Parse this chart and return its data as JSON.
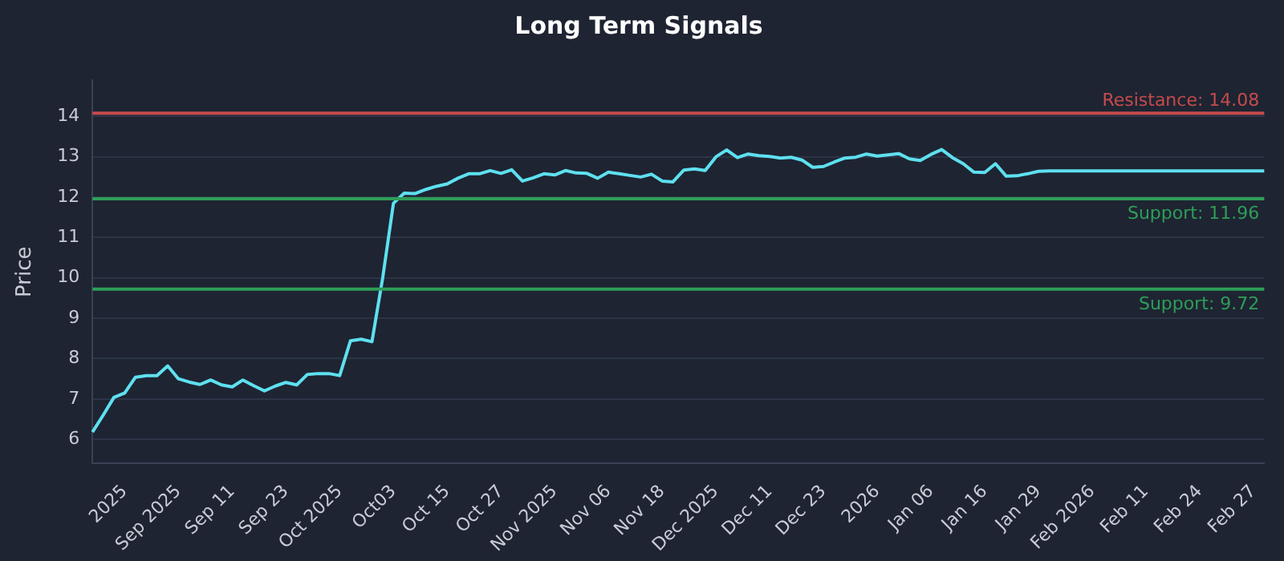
{
  "chart_data": {
    "type": "line",
    "title": "Long Term Signals",
    "ylabel": "Price",
    "categories": [
      null,
      null,
      null,
      "2025",
      null,
      null,
      null,
      null,
      "Sep 2025",
      null,
      null,
      null,
      null,
      "Sep 11",
      null,
      null,
      null,
      null,
      "Sep 23",
      null,
      null,
      null,
      null,
      "Oct 2025",
      null,
      null,
      null,
      null,
      "Oct03",
      null,
      null,
      null,
      null,
      "Oct 15",
      null,
      null,
      null,
      null,
      "Oct 27",
      null,
      null,
      null,
      null,
      "Nov 2025",
      null,
      null,
      null,
      null,
      "Nov 06",
      null,
      null,
      null,
      null,
      "Nov 18",
      null,
      null,
      null,
      null,
      "Dec 2025",
      null,
      null,
      null,
      null,
      "Dec 11",
      null,
      null,
      null,
      null,
      "Dec 23",
      null,
      null,
      null,
      null,
      "2026",
      null,
      null,
      null,
      null,
      "Jan 06",
      null,
      null,
      null,
      null,
      "Jan 16",
      null,
      null,
      null,
      null,
      "Jan 29",
      null,
      null,
      null,
      null,
      "Feb 2026",
      null,
      null,
      null,
      null,
      "Feb 11",
      null,
      null,
      null,
      null,
      "Feb 24",
      null,
      null,
      null,
      null,
      "Feb 27",
      null
    ],
    "series": [
      {
        "color": "#5ee0ef",
        "values": [
          6.18,
          6.6,
          7.04,
          7.15,
          7.54,
          7.58,
          7.58,
          7.82,
          7.5,
          7.42,
          7.36,
          7.47,
          7.35,
          7.3,
          7.47,
          7.33,
          7.2,
          7.32,
          7.41,
          7.35,
          7.61,
          7.63,
          7.63,
          7.58,
          8.44,
          8.48,
          8.42,
          10.0,
          11.85,
          12.1,
          12.09,
          12.19,
          12.27,
          12.33,
          12.47,
          12.58,
          12.58,
          12.66,
          12.59,
          12.68,
          12.4,
          12.48,
          12.58,
          12.55,
          12.66,
          12.6,
          12.59,
          12.47,
          12.62,
          12.58,
          12.54,
          12.5,
          12.57,
          12.4,
          12.38,
          12.67,
          12.7,
          12.66,
          13.0,
          13.17,
          12.98,
          13.07,
          13.03,
          13.01,
          12.97,
          12.99,
          12.92,
          12.74,
          12.76,
          12.87,
          12.97,
          12.99,
          13.07,
          13.02,
          13.05,
          13.08,
          12.95,
          12.91,
          13.06,
          13.18,
          12.98,
          12.83,
          12.62,
          12.61,
          12.83,
          12.52,
          12.53,
          12.58,
          12.64,
          12.65,
          12.65,
          12.65,
          12.65,
          12.65,
          12.65,
          12.65,
          12.65,
          12.65,
          12.65,
          12.65,
          12.65,
          12.65,
          12.65,
          12.65,
          12.65,
          12.65,
          12.65,
          12.65,
          12.65,
          12.65
        ]
      }
    ],
    "ylim": [
      5.4,
      14.9
    ],
    "yticks": [
      6,
      7,
      8,
      9,
      10,
      11,
      12,
      13,
      14
    ],
    "grid": "y",
    "legend": false,
    "marker": "none",
    "line_style": "solid",
    "ref_lines": [
      {
        "axis": "y",
        "value": 14.08,
        "label": "Resistance: 14.08",
        "color": "#c64b4b"
      },
      {
        "axis": "y",
        "value": 11.96,
        "label": "Support: 11.96",
        "color": "#2e9e58"
      },
      {
        "axis": "y",
        "value": 9.72,
        "label": "Support: 9.72",
        "color": "#2e9e58"
      }
    ]
  }
}
